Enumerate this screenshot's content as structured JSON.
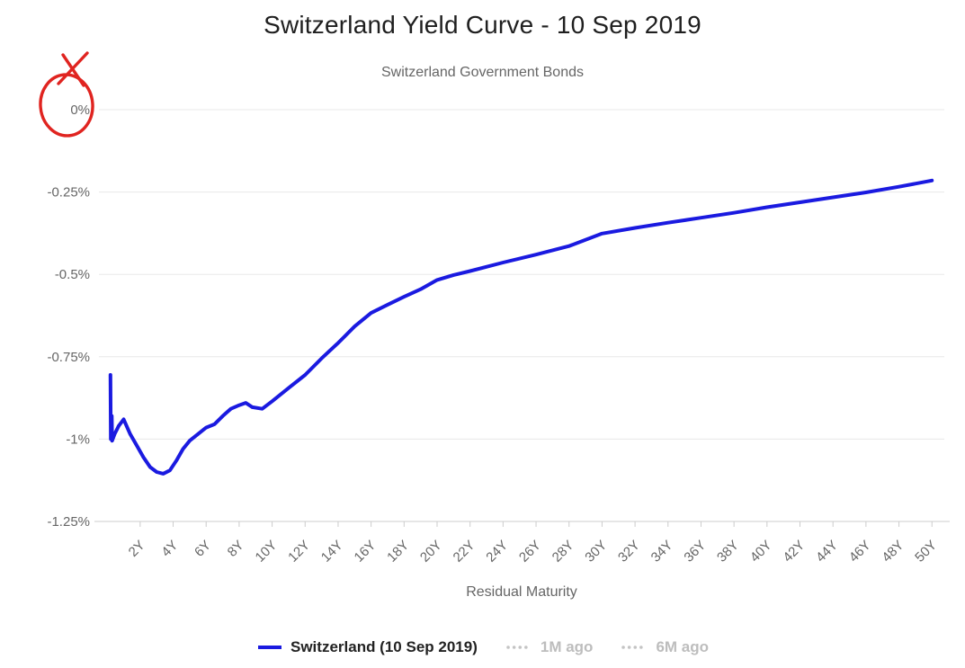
{
  "title": "Switzerland Yield Curve - 10 Sep 2019",
  "subtitle": "Switzerland Government Bonds",
  "annotation": {
    "shape": "hand-drawn-circle-with-x",
    "color": "#e02420",
    "circled_text": "0%"
  },
  "chart_data": {
    "type": "line",
    "title": "Switzerland Yield Curve - 10 Sep 2019",
    "subtitle": "Switzerland Government Bonds",
    "xlabel": "Residual Maturity",
    "ylabel": "",
    "xlim": [
      -0.5,
      50.75
    ],
    "ylim": [
      -1.25,
      0
    ],
    "grid": "horizontal",
    "legend_position": "bottom",
    "y_ticks": [
      {
        "value": 0,
        "label": "0%"
      },
      {
        "value": -0.25,
        "label": "-0.25%"
      },
      {
        "value": -0.5,
        "label": "-0.5%"
      },
      {
        "value": -0.75,
        "label": "-0.75%"
      },
      {
        "value": -1,
        "label": "-1%"
      },
      {
        "value": -1.25,
        "label": "-1.25%"
      }
    ],
    "x_ticks": [
      {
        "value": 2,
        "label": "2Y"
      },
      {
        "value": 4,
        "label": "4Y"
      },
      {
        "value": 6,
        "label": "6Y"
      },
      {
        "value": 8,
        "label": "8Y"
      },
      {
        "value": 10,
        "label": "10Y"
      },
      {
        "value": 12,
        "label": "12Y"
      },
      {
        "value": 14,
        "label": "14Y"
      },
      {
        "value": 16,
        "label": "16Y"
      },
      {
        "value": 18,
        "label": "18Y"
      },
      {
        "value": 20,
        "label": "20Y"
      },
      {
        "value": 22,
        "label": "22Y"
      },
      {
        "value": 24,
        "label": "24Y"
      },
      {
        "value": 26,
        "label": "26Y"
      },
      {
        "value": 28,
        "label": "28Y"
      },
      {
        "value": 30,
        "label": "30Y"
      },
      {
        "value": 32,
        "label": "32Y"
      },
      {
        "value": 34,
        "label": "34Y"
      },
      {
        "value": 36,
        "label": "36Y"
      },
      {
        "value": 38,
        "label": "38Y"
      },
      {
        "value": 40,
        "label": "40Y"
      },
      {
        "value": 42,
        "label": "42Y"
      },
      {
        "value": 44,
        "label": "44Y"
      },
      {
        "value": 46,
        "label": "46Y"
      },
      {
        "value": 48,
        "label": "48Y"
      },
      {
        "value": 50,
        "label": "50Y"
      }
    ],
    "series": [
      {
        "name": "Switzerland (10 Sep 2019)",
        "color": "#1a1ae0",
        "points": [
          [
            0.2,
            -0.805
          ],
          [
            0.22,
            -1.0
          ],
          [
            0.28,
            -0.93
          ],
          [
            0.3,
            -1.005
          ],
          [
            0.45,
            -0.985
          ],
          [
            0.7,
            -0.96
          ],
          [
            1.0,
            -0.94
          ],
          [
            1.4,
            -0.985
          ],
          [
            1.8,
            -1.02
          ],
          [
            2.2,
            -1.055
          ],
          [
            2.6,
            -1.085
          ],
          [
            3.0,
            -1.1
          ],
          [
            3.4,
            -1.105
          ],
          [
            3.8,
            -1.095
          ],
          [
            4.2,
            -1.065
          ],
          [
            4.6,
            -1.03
          ],
          [
            5.0,
            -1.005
          ],
          [
            5.5,
            -0.985
          ],
          [
            6.0,
            -0.965
          ],
          [
            6.5,
            -0.955
          ],
          [
            7.0,
            -0.93
          ],
          [
            7.5,
            -0.908
          ],
          [
            8.0,
            -0.897
          ],
          [
            8.4,
            -0.89
          ],
          [
            8.8,
            -0.903
          ],
          [
            9.4,
            -0.908
          ],
          [
            10,
            -0.885
          ],
          [
            11,
            -0.845
          ],
          [
            12,
            -0.805
          ],
          [
            13,
            -0.755
          ],
          [
            14,
            -0.708
          ],
          [
            15,
            -0.658
          ],
          [
            16,
            -0.617
          ],
          [
            17,
            -0.592
          ],
          [
            18,
            -0.568
          ],
          [
            19,
            -0.545
          ],
          [
            20,
            -0.517
          ],
          [
            21,
            -0.502
          ],
          [
            22,
            -0.49
          ],
          [
            24,
            -0.464
          ],
          [
            26,
            -0.44
          ],
          [
            28,
            -0.414
          ],
          [
            30,
            -0.376
          ],
          [
            32,
            -0.359
          ],
          [
            34,
            -0.343
          ],
          [
            36,
            -0.328
          ],
          [
            38,
            -0.313
          ],
          [
            40,
            -0.296
          ],
          [
            42,
            -0.281
          ],
          [
            44,
            -0.266
          ],
          [
            46,
            -0.251
          ],
          [
            48,
            -0.234
          ],
          [
            50,
            -0.215
          ]
        ]
      }
    ],
    "legend": [
      {
        "label": "Switzerland (10 Sep 2019)",
        "style": "solid",
        "color": "#1a1ae0",
        "active": true
      },
      {
        "label": "1M ago",
        "style": "dotted",
        "color": "#c4c4c4",
        "active": false
      },
      {
        "label": "6M ago",
        "style": "dotted",
        "color": "#c4c4c4",
        "active": false
      }
    ],
    "colors": {
      "series": "#1a1ae0",
      "grid": "#e8e8e8",
      "axis_line": "#cccccc",
      "axis_text": "#666666",
      "title_text": "#1f1f1f",
      "subtitle_text": "#666666",
      "legend_active_text": "#222222",
      "legend_inactive": "#bdbdbd"
    }
  }
}
